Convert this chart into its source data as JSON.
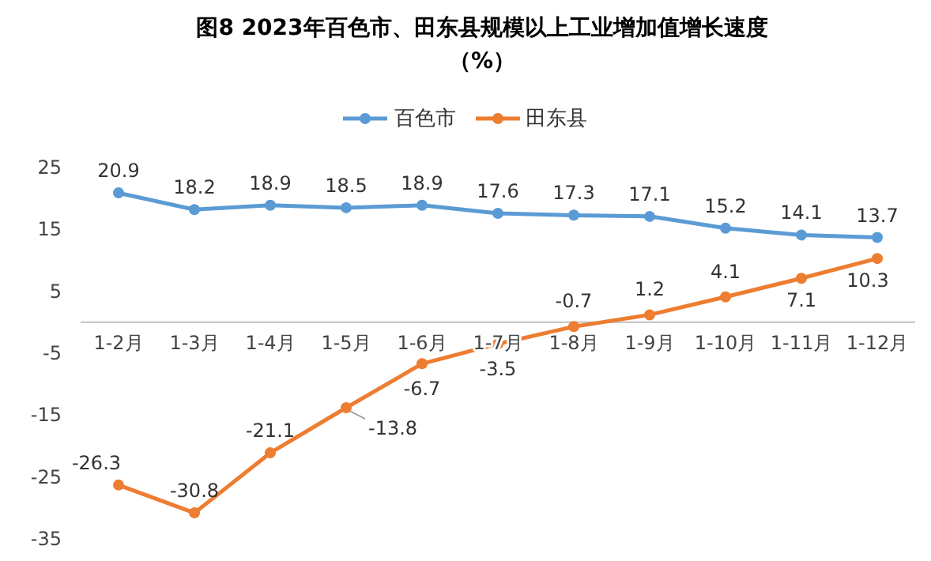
{
  "chart_data": {
    "type": "line",
    "title": "图8  2023年百色市、田东县规模以上工业增加值增长速度（%）",
    "categories": [
      "1-2月",
      "1-3月",
      "1-4月",
      "1-5月",
      "1-6月",
      "1-7月",
      "1-8月",
      "1-9月",
      "1-10月",
      "1-11月",
      "1-12月"
    ],
    "series": [
      {
        "name": "百色市",
        "color": "#5b9bd5",
        "values": [
          20.9,
          18.2,
          18.9,
          18.5,
          18.9,
          17.6,
          17.3,
          17.1,
          15.2,
          14.1,
          13.7
        ]
      },
      {
        "name": "田东县",
        "color": "#ed7d31",
        "values": [
          -26.3,
          -30.8,
          -21.1,
          -13.8,
          -6.7,
          -3.5,
          -0.7,
          1.2,
          4.1,
          7.1,
          10.3
        ]
      }
    ],
    "ylim": [
      -35,
      25
    ],
    "yticks": [
      25,
      15,
      5,
      -5,
      -15,
      -25,
      -35
    ],
    "grid": false,
    "legend": "top",
    "marker": "circle",
    "line_style": "solid",
    "data_labels": true
  }
}
